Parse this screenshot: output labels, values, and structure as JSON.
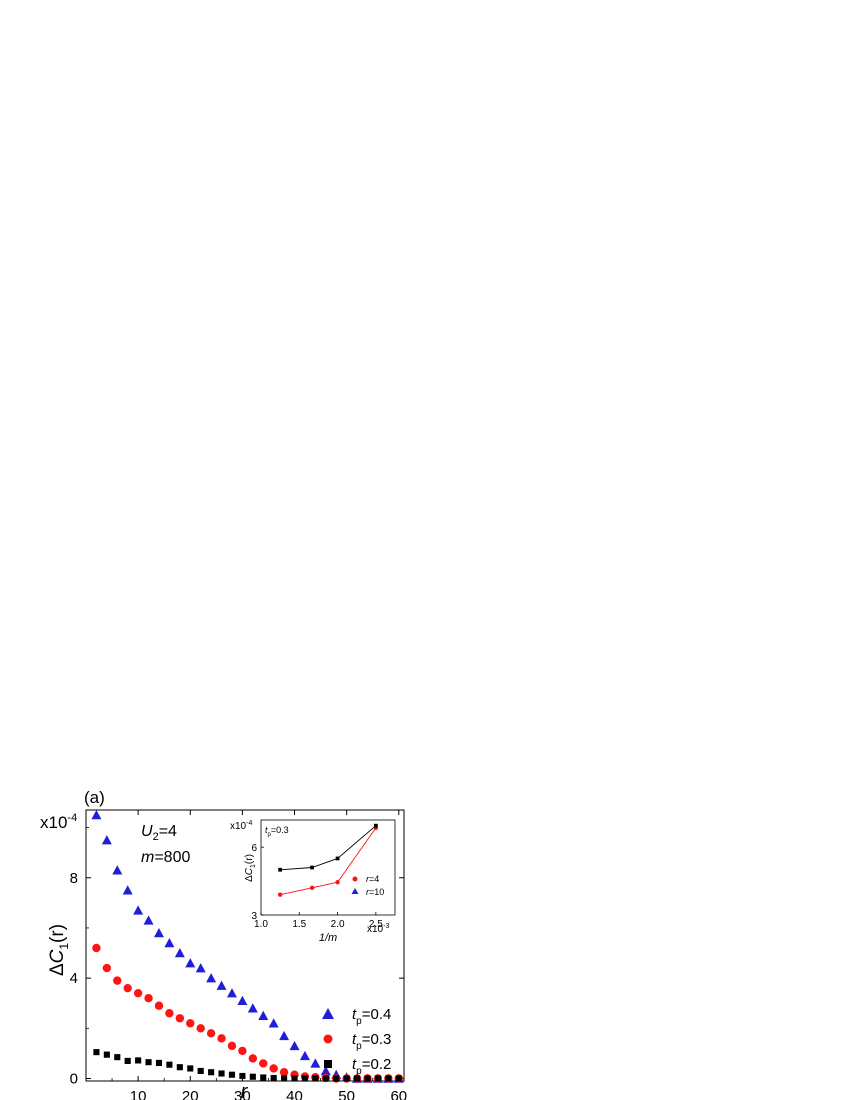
{
  "panel_label": "(a)",
  "annotations": {
    "main_u2": "U",
    "main_u2_sub": "2",
    "main_u2_val": "=4",
    "main_m": "m",
    "main_m_val": "=800",
    "inset_tp": "t",
    "inset_tp_sub": "p",
    "inset_tp_val": "=0.3"
  },
  "colors": {
    "blue": "#1f1fd9",
    "red": "#ff1414",
    "black": "#000000"
  },
  "chart_data": [
    {
      "type": "scatter",
      "title": "",
      "xlabel": "r",
      "ylabel": "ΔC1(r)",
      "ylabel_parts": {
        "delta": "Δ",
        "c": "C",
        "sub": "1",
        "arg": "(r)"
      },
      "y_multiplier": "x10-4",
      "y_multiplier_parts": {
        "base": "x10",
        "exp": "-4"
      },
      "xlim": [
        0,
        61
      ],
      "ylim": [
        -0.1,
        10.7
      ],
      "xticks": [
        10,
        20,
        30,
        40,
        50,
        60
      ],
      "yticks": [
        0,
        4,
        8
      ],
      "grid": false,
      "legend_position": "bottom-right",
      "series": [
        {
          "name": "tp=0.4",
          "legend": {
            "t": "t",
            "sub": "p",
            "val": "=0.4"
          },
          "marker": "triangle",
          "color": "#1f1fd9",
          "x": [
            2,
            4,
            6,
            8,
            10,
            12,
            14,
            16,
            18,
            20,
            22,
            24,
            26,
            28,
            30,
            32,
            34,
            36,
            38,
            40,
            42,
            44,
            46,
            48,
            50,
            52,
            54,
            56,
            58,
            60
          ],
          "y": [
            10.5,
            9.5,
            8.3,
            7.5,
            6.7,
            6.3,
            5.8,
            5.4,
            5.0,
            4.6,
            4.4,
            4.0,
            3.7,
            3.4,
            3.1,
            2.8,
            2.5,
            2.2,
            1.7,
            1.3,
            0.9,
            0.6,
            0.3,
            0.15,
            0.05,
            0.0,
            0.0,
            0.0,
            0.0,
            0.0
          ]
        },
        {
          "name": "tp=0.3",
          "legend": {
            "t": "t",
            "sub": "p",
            "val": "=0.3"
          },
          "marker": "circle",
          "color": "#ff1414",
          "x": [
            2,
            4,
            6,
            8,
            10,
            12,
            14,
            16,
            18,
            20,
            22,
            24,
            26,
            28,
            30,
            32,
            34,
            36,
            38,
            40,
            42,
            44,
            46,
            48,
            50,
            52,
            54,
            56,
            58,
            60
          ],
          "y": [
            5.2,
            4.4,
            3.9,
            3.6,
            3.4,
            3.2,
            2.9,
            2.6,
            2.4,
            2.2,
            2.0,
            1.8,
            1.6,
            1.3,
            1.1,
            0.8,
            0.6,
            0.4,
            0.25,
            0.15,
            0.08,
            0.05,
            0.02,
            0.0,
            0.0,
            0.0,
            0.0,
            0.0,
            0.0,
            0.0
          ]
        },
        {
          "name": "tp=0.2",
          "legend": {
            "t": "t",
            "sub": "p",
            "val": "=0.2"
          },
          "marker": "square",
          "color": "#000000",
          "x": [
            2,
            4,
            6,
            8,
            10,
            12,
            14,
            16,
            18,
            20,
            22,
            24,
            26,
            28,
            30,
            32,
            34,
            36,
            38,
            40,
            42,
            44,
            46,
            48,
            50,
            52,
            54,
            56,
            58,
            60
          ],
          "y": [
            1.05,
            0.95,
            0.85,
            0.7,
            0.72,
            0.65,
            0.62,
            0.55,
            0.45,
            0.4,
            0.3,
            0.25,
            0.2,
            0.15,
            0.1,
            0.07,
            0.04,
            0.02,
            0.0,
            0.0,
            0.0,
            0.0,
            0.0,
            0.0,
            0.0,
            0.0,
            0.0,
            0.0,
            0.0,
            0.0
          ]
        }
      ]
    },
    {
      "type": "line",
      "title": "",
      "xlabel": "1/m",
      "ylabel": "ΔC1(r)",
      "ylabel_parts": {
        "delta": "Δ",
        "c": "C",
        "sub": "1",
        "arg": "(r)"
      },
      "y_multiplier_parts": {
        "base": "x10",
        "exp": "-4"
      },
      "x_multiplier_parts": {
        "base": "x10",
        "exp": "-3"
      },
      "xlim": [
        1.0,
        2.75
      ],
      "ylim": [
        3.0,
        7.2
      ],
      "xticks": [
        1.0,
        1.5,
        2.0,
        2.5
      ],
      "xticklabels": [
        "1.0",
        "1.5",
        "2.0",
        "2.5"
      ],
      "yticks": [
        3,
        6
      ],
      "grid": false,
      "legend_position": "bottom-right",
      "series": [
        {
          "name": "r=4",
          "legend": {
            "r": "r",
            "val": "=4"
          },
          "marker": "circle",
          "color": "#ff1414",
          "x": [
            1.25,
            1.667,
            2.0,
            2.5
          ],
          "y": [
            3.9,
            4.2,
            4.45,
            6.85
          ]
        },
        {
          "name": "r=10",
          "legend": {
            "r": "r",
            "val": "=10"
          },
          "marker": "square",
          "legend_marker": "triangle",
          "legend_marker_color": "#1f1fd9",
          "color": "#000000",
          "x": [
            1.25,
            1.667,
            2.0,
            2.5
          ],
          "y": [
            5.0,
            5.1,
            5.5,
            6.95
          ]
        }
      ]
    }
  ]
}
